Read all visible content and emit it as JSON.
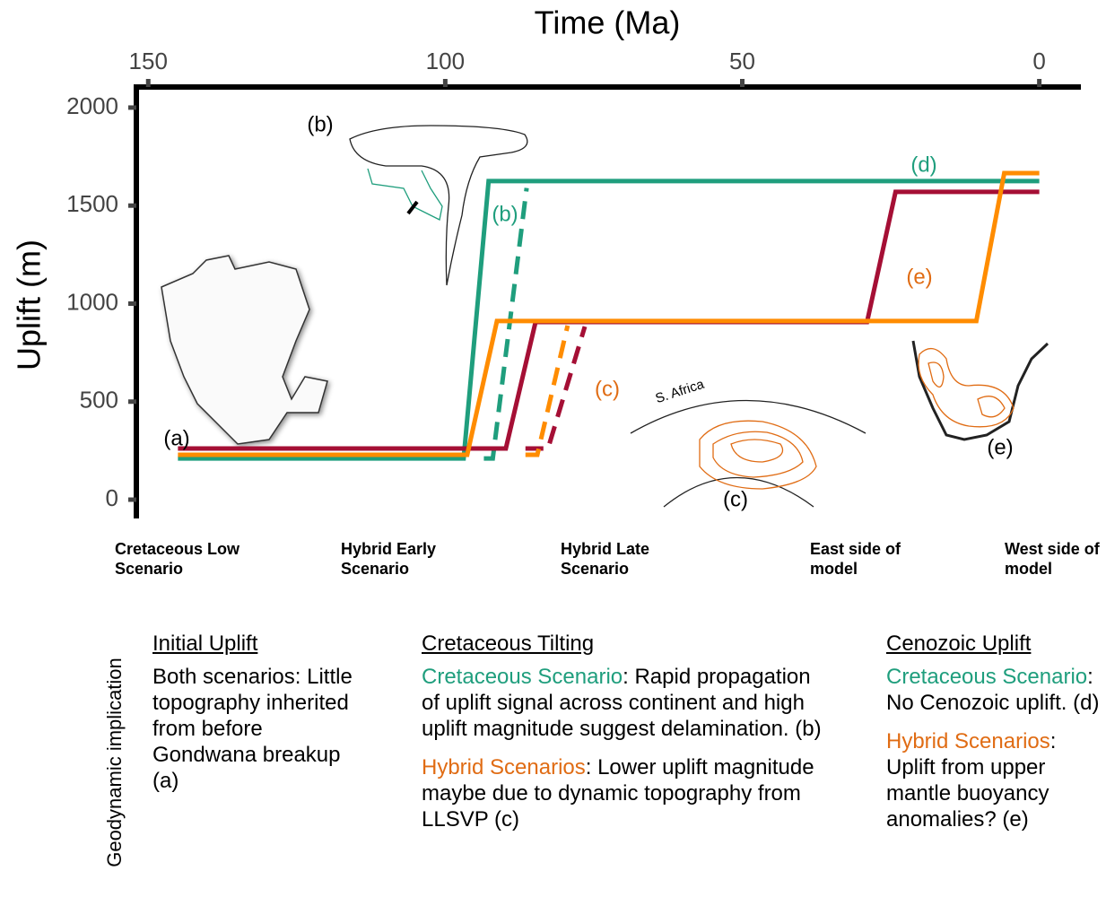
{
  "chart_data": {
    "type": "line",
    "title": "Time (Ma)",
    "y_label": "Uplift (m)",
    "xlim": [
      152,
      -7
    ],
    "xticks": [
      150,
      100,
      50,
      0
    ],
    "ylim": [
      -96,
      2105
    ],
    "yticks": [
      0,
      500,
      1000,
      1500,
      2000
    ],
    "series": [
      {
        "name": "Cretaceous Low Scenario",
        "color": "#1f9e7d",
        "east": {
          "x": [
            145,
            96.9,
            92.7,
            0
          ],
          "values": [
            210,
            210,
            1625,
            1625
          ]
        },
        "west": {
          "x": [
            93.5,
            92,
            86.3
          ],
          "values": [
            210,
            210,
            1590
          ]
        }
      },
      {
        "name": "Hybrid Early Scenario",
        "color": "#a50f35",
        "east": {
          "x": [
            145,
            89.8,
            84.8,
            29.0,
            24.2,
            0
          ],
          "values": [
            261,
            261,
            906,
            906,
            1570,
            1570
          ]
        },
        "west": {
          "x": [
            86.5,
            82.7,
            76.5
          ],
          "values": [
            261,
            261,
            883
          ]
        }
      },
      {
        "name": "Hybrid Late Scenario",
        "color": "#ff8c00",
        "east": {
          "x": [
            145,
            96.3,
            91.3,
            10.6,
            5.9,
            0
          ],
          "values": [
            229,
            229,
            911,
            911,
            1666,
            1666
          ]
        },
        "west": {
          "x": [
            86.5,
            84.5,
            79.4
          ],
          "values": [
            229,
            229,
            888
          ]
        }
      }
    ],
    "line_styles": [
      {
        "name": "East side of model",
        "dash": "solid"
      },
      {
        "name": "West side of model",
        "dash": "dashed"
      }
    ],
    "annotations": [
      {
        "text": "(a)",
        "color": "#000000"
      },
      {
        "text": "(b)",
        "color": "#000000"
      },
      {
        "text": "(b)",
        "color": "#1f9e7d"
      },
      {
        "text": "(d)",
        "color": "#1f9e7d"
      },
      {
        "text": "(e)",
        "color": "#e06c14"
      },
      {
        "text": "(c)",
        "color": "#e06c14"
      },
      {
        "text": "S. Africa",
        "color": "#000000"
      },
      {
        "text": "(c)",
        "color": "#000000"
      },
      {
        "text": "(e)",
        "color": "#000000"
      }
    ]
  },
  "implications": {
    "label": "Geodynamic implication",
    "columns": [
      {
        "heading": "Initial Uplift",
        "paragraphs": [
          [
            {
              "text": "Both scenarios: Little topography inherited from before Gondwana breakup (a)"
            }
          ]
        ]
      },
      {
        "heading": "Cretaceous Tilting",
        "paragraphs": [
          [
            {
              "text": "Cretaceous Scenario",
              "color": "#1f9e7d"
            },
            {
              "text": ": Rapid propagation of uplift signal across continent and high uplift magnitude suggest delamination. (b)"
            }
          ],
          [
            {
              "text": "Hybrid Scenarios",
              "color": "#e06c14"
            },
            {
              "text": ": Lower uplift magnitude maybe due to dynamic topography from LLSVP (c)"
            }
          ]
        ]
      },
      {
        "heading": "Cenozoic Uplift",
        "paragraphs": [
          [
            {
              "text": "Cretaceous Scenario",
              "color": "#1f9e7d"
            },
            {
              "text": ": No Cenozoic uplift. (d)"
            }
          ],
          [
            {
              "text": "Hybrid Scenarios",
              "color": "#e06c14"
            },
            {
              "text": ": Uplift from upper mantle buoyancy anomalies?  (e)"
            }
          ]
        ]
      }
    ]
  }
}
